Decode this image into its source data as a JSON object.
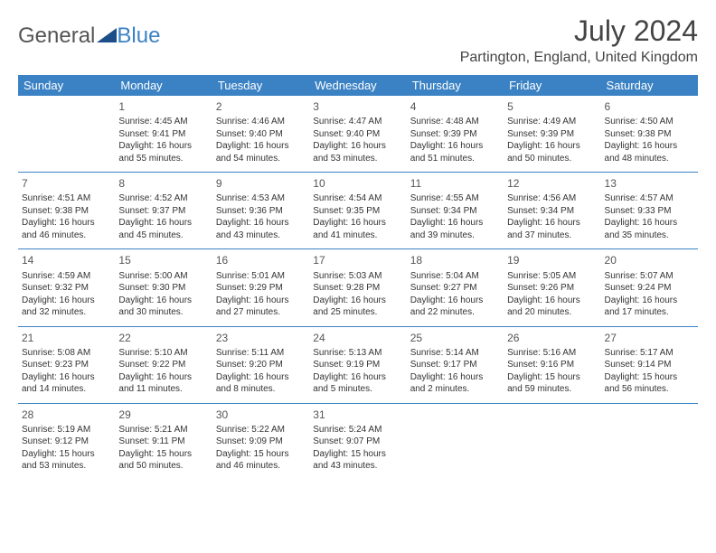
{
  "logo": {
    "text1": "General",
    "text2": "Blue"
  },
  "title": "July 2024",
  "location": "Partington, England, United Kingdom",
  "colors": {
    "accent": "#3b82c4",
    "header_text": "#ffffff",
    "body_text": "#333333",
    "title_text": "#444444"
  },
  "weekdays": [
    "Sunday",
    "Monday",
    "Tuesday",
    "Wednesday",
    "Thursday",
    "Friday",
    "Saturday"
  ],
  "weeks": [
    [
      null,
      {
        "n": "1",
        "sr": "Sunrise: 4:45 AM",
        "ss": "Sunset: 9:41 PM",
        "d1": "Daylight: 16 hours",
        "d2": "and 55 minutes."
      },
      {
        "n": "2",
        "sr": "Sunrise: 4:46 AM",
        "ss": "Sunset: 9:40 PM",
        "d1": "Daylight: 16 hours",
        "d2": "and 54 minutes."
      },
      {
        "n": "3",
        "sr": "Sunrise: 4:47 AM",
        "ss": "Sunset: 9:40 PM",
        "d1": "Daylight: 16 hours",
        "d2": "and 53 minutes."
      },
      {
        "n": "4",
        "sr": "Sunrise: 4:48 AM",
        "ss": "Sunset: 9:39 PM",
        "d1": "Daylight: 16 hours",
        "d2": "and 51 minutes."
      },
      {
        "n": "5",
        "sr": "Sunrise: 4:49 AM",
        "ss": "Sunset: 9:39 PM",
        "d1": "Daylight: 16 hours",
        "d2": "and 50 minutes."
      },
      {
        "n": "6",
        "sr": "Sunrise: 4:50 AM",
        "ss": "Sunset: 9:38 PM",
        "d1": "Daylight: 16 hours",
        "d2": "and 48 minutes."
      }
    ],
    [
      {
        "n": "7",
        "sr": "Sunrise: 4:51 AM",
        "ss": "Sunset: 9:38 PM",
        "d1": "Daylight: 16 hours",
        "d2": "and 46 minutes."
      },
      {
        "n": "8",
        "sr": "Sunrise: 4:52 AM",
        "ss": "Sunset: 9:37 PM",
        "d1": "Daylight: 16 hours",
        "d2": "and 45 minutes."
      },
      {
        "n": "9",
        "sr": "Sunrise: 4:53 AM",
        "ss": "Sunset: 9:36 PM",
        "d1": "Daylight: 16 hours",
        "d2": "and 43 minutes."
      },
      {
        "n": "10",
        "sr": "Sunrise: 4:54 AM",
        "ss": "Sunset: 9:35 PM",
        "d1": "Daylight: 16 hours",
        "d2": "and 41 minutes."
      },
      {
        "n": "11",
        "sr": "Sunrise: 4:55 AM",
        "ss": "Sunset: 9:34 PM",
        "d1": "Daylight: 16 hours",
        "d2": "and 39 minutes."
      },
      {
        "n": "12",
        "sr": "Sunrise: 4:56 AM",
        "ss": "Sunset: 9:34 PM",
        "d1": "Daylight: 16 hours",
        "d2": "and 37 minutes."
      },
      {
        "n": "13",
        "sr": "Sunrise: 4:57 AM",
        "ss": "Sunset: 9:33 PM",
        "d1": "Daylight: 16 hours",
        "d2": "and 35 minutes."
      }
    ],
    [
      {
        "n": "14",
        "sr": "Sunrise: 4:59 AM",
        "ss": "Sunset: 9:32 PM",
        "d1": "Daylight: 16 hours",
        "d2": "and 32 minutes."
      },
      {
        "n": "15",
        "sr": "Sunrise: 5:00 AM",
        "ss": "Sunset: 9:30 PM",
        "d1": "Daylight: 16 hours",
        "d2": "and 30 minutes."
      },
      {
        "n": "16",
        "sr": "Sunrise: 5:01 AM",
        "ss": "Sunset: 9:29 PM",
        "d1": "Daylight: 16 hours",
        "d2": "and 27 minutes."
      },
      {
        "n": "17",
        "sr": "Sunrise: 5:03 AM",
        "ss": "Sunset: 9:28 PM",
        "d1": "Daylight: 16 hours",
        "d2": "and 25 minutes."
      },
      {
        "n": "18",
        "sr": "Sunrise: 5:04 AM",
        "ss": "Sunset: 9:27 PM",
        "d1": "Daylight: 16 hours",
        "d2": "and 22 minutes."
      },
      {
        "n": "19",
        "sr": "Sunrise: 5:05 AM",
        "ss": "Sunset: 9:26 PM",
        "d1": "Daylight: 16 hours",
        "d2": "and 20 minutes."
      },
      {
        "n": "20",
        "sr": "Sunrise: 5:07 AM",
        "ss": "Sunset: 9:24 PM",
        "d1": "Daylight: 16 hours",
        "d2": "and 17 minutes."
      }
    ],
    [
      {
        "n": "21",
        "sr": "Sunrise: 5:08 AM",
        "ss": "Sunset: 9:23 PM",
        "d1": "Daylight: 16 hours",
        "d2": "and 14 minutes."
      },
      {
        "n": "22",
        "sr": "Sunrise: 5:10 AM",
        "ss": "Sunset: 9:22 PM",
        "d1": "Daylight: 16 hours",
        "d2": "and 11 minutes."
      },
      {
        "n": "23",
        "sr": "Sunrise: 5:11 AM",
        "ss": "Sunset: 9:20 PM",
        "d1": "Daylight: 16 hours",
        "d2": "and 8 minutes."
      },
      {
        "n": "24",
        "sr": "Sunrise: 5:13 AM",
        "ss": "Sunset: 9:19 PM",
        "d1": "Daylight: 16 hours",
        "d2": "and 5 minutes."
      },
      {
        "n": "25",
        "sr": "Sunrise: 5:14 AM",
        "ss": "Sunset: 9:17 PM",
        "d1": "Daylight: 16 hours",
        "d2": "and 2 minutes."
      },
      {
        "n": "26",
        "sr": "Sunrise: 5:16 AM",
        "ss": "Sunset: 9:16 PM",
        "d1": "Daylight: 15 hours",
        "d2": "and 59 minutes."
      },
      {
        "n": "27",
        "sr": "Sunrise: 5:17 AM",
        "ss": "Sunset: 9:14 PM",
        "d1": "Daylight: 15 hours",
        "d2": "and 56 minutes."
      }
    ],
    [
      {
        "n": "28",
        "sr": "Sunrise: 5:19 AM",
        "ss": "Sunset: 9:12 PM",
        "d1": "Daylight: 15 hours",
        "d2": "and 53 minutes."
      },
      {
        "n": "29",
        "sr": "Sunrise: 5:21 AM",
        "ss": "Sunset: 9:11 PM",
        "d1": "Daylight: 15 hours",
        "d2": "and 50 minutes."
      },
      {
        "n": "30",
        "sr": "Sunrise: 5:22 AM",
        "ss": "Sunset: 9:09 PM",
        "d1": "Daylight: 15 hours",
        "d2": "and 46 minutes."
      },
      {
        "n": "31",
        "sr": "Sunrise: 5:24 AM",
        "ss": "Sunset: 9:07 PM",
        "d1": "Daylight: 15 hours",
        "d2": "and 43 minutes."
      },
      null,
      null,
      null
    ]
  ]
}
